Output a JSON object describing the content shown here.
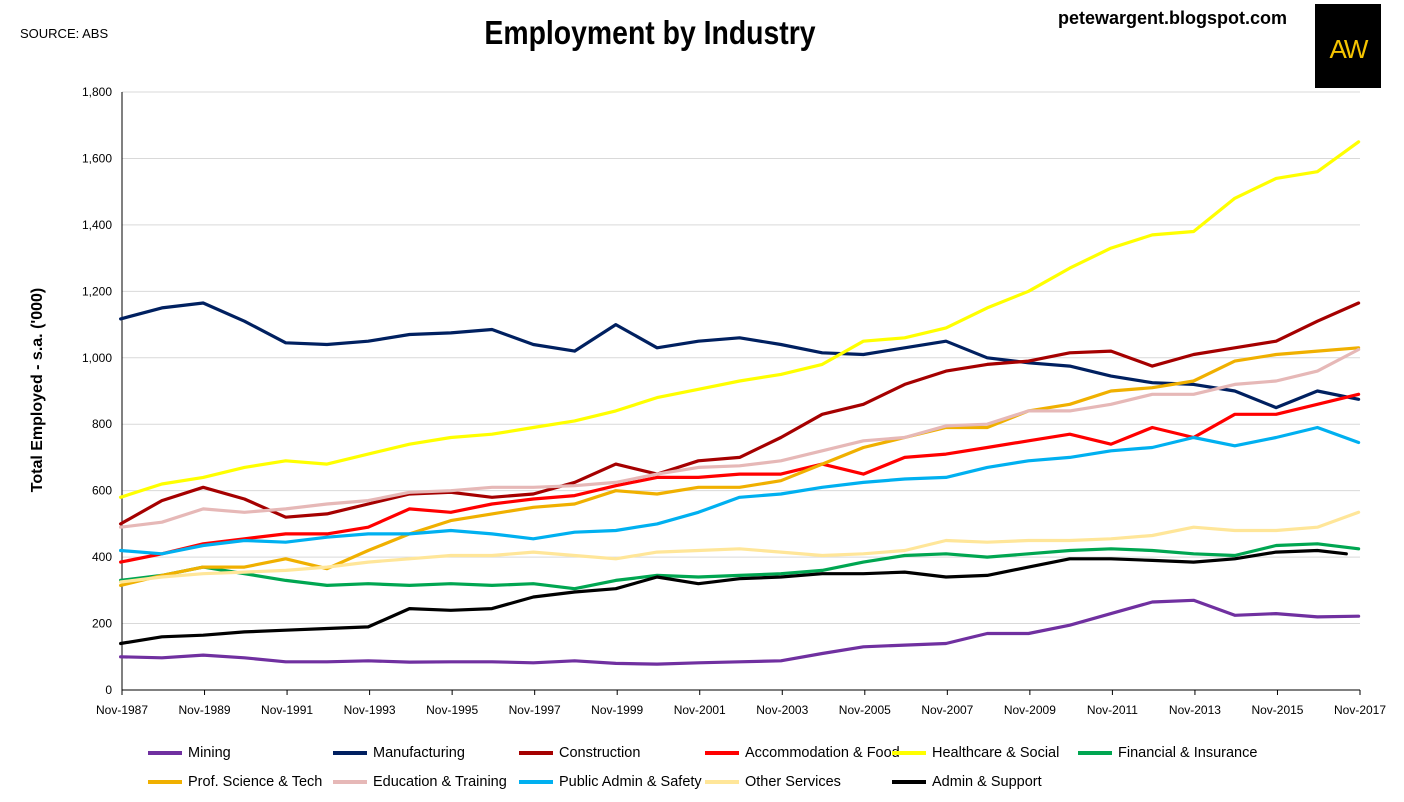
{
  "header": {
    "source": "SOURCE: ABS",
    "blog": "petewargent.blogspot.com",
    "logo_text": "AW"
  },
  "chart_data": {
    "type": "line",
    "title": "Employment by Industry",
    "ylabel": "Total Employed - s.a. ('000)",
    "xlabel": "",
    "ylim": [
      0,
      1800
    ],
    "yticks": [
      0,
      200,
      400,
      600,
      800,
      1000,
      1200,
      1400,
      1600,
      1800
    ],
    "ytick_labels": [
      "0",
      "200",
      "400",
      "600",
      "800",
      "1,000",
      "1,200",
      "1,400",
      "1,600",
      "1,800"
    ],
    "xlim": [
      1987.833,
      2017.833
    ],
    "xtick_labels": [
      "Nov-1987",
      "Nov-1989",
      "Nov-1991",
      "Nov-1993",
      "Nov-1995",
      "Nov-1997",
      "Nov-1999",
      "Nov-2001",
      "Nov-2003",
      "Nov-2005",
      "Nov-2007",
      "Nov-2009",
      "Nov-2011",
      "Nov-2013",
      "Nov-2015",
      "Nov-2017"
    ],
    "xtick_values": [
      1987.833,
      1989.833,
      1991.833,
      1993.833,
      1995.833,
      1997.833,
      1999.833,
      2001.833,
      2003.833,
      2005.833,
      2007.833,
      2009.833,
      2011.833,
      2013.833,
      2015.833,
      2017.833
    ],
    "grid": "horizontal",
    "legend_position": "bottom",
    "series": [
      {
        "name": "Mining",
        "color": "#7030a0",
        "x": [
          1987.8,
          1988.8,
          1989.8,
          1990.8,
          1991.8,
          1992.8,
          1993.8,
          1994.8,
          1995.8,
          1996.8,
          1997.8,
          1998.8,
          1999.8,
          2000.8,
          2001.8,
          2002.8,
          2003.8,
          2004.8,
          2005.8,
          2006.8,
          2007.8,
          2008.8,
          2009.8,
          2010.8,
          2011.8,
          2012.8,
          2013.8,
          2014.8,
          2015.8,
          2016.8,
          2017.8
        ],
        "y": [
          100,
          97,
          105,
          97,
          85,
          85,
          88,
          84,
          85,
          85,
          82,
          88,
          80,
          78,
          82,
          85,
          88,
          110,
          130,
          135,
          140,
          170,
          170,
          195,
          230,
          265,
          270,
          225,
          230,
          220,
          222
        ]
      },
      {
        "name": "Manufacturing",
        "color": "#002060",
        "x": [
          1987.8,
          1988.8,
          1989.8,
          1990.8,
          1991.8,
          1992.8,
          1993.8,
          1994.8,
          1995.8,
          1996.8,
          1997.8,
          1998.8,
          1999.8,
          2000.8,
          2001.8,
          2002.8,
          2003.8,
          2004.8,
          2005.8,
          2006.8,
          2007.8,
          2008.8,
          2009.8,
          2010.8,
          2011.8,
          2012.8,
          2013.8,
          2014.8,
          2015.8,
          2016.8,
          2017.8
        ],
        "y": [
          1117,
          1150,
          1165,
          1110,
          1045,
          1040,
          1050,
          1070,
          1075,
          1085,
          1040,
          1020,
          1100,
          1030,
          1050,
          1060,
          1040,
          1015,
          1010,
          1030,
          1050,
          1000,
          985,
          975,
          945,
          925,
          920,
          900,
          850,
          900,
          875
        ]
      },
      {
        "name": "Construction",
        "color": "#a50000",
        "x": [
          1987.8,
          1988.8,
          1989.8,
          1990.8,
          1991.8,
          1992.8,
          1993.8,
          1994.8,
          1995.8,
          1996.8,
          1997.8,
          1998.8,
          1999.8,
          2000.8,
          2001.8,
          2002.8,
          2003.8,
          2004.8,
          2005.8,
          2006.8,
          2007.8,
          2008.8,
          2009.8,
          2010.8,
          2011.8,
          2012.8,
          2013.8,
          2014.8,
          2015.8,
          2016.8,
          2017.8
        ],
        "y": [
          500,
          570,
          610,
          575,
          520,
          530,
          560,
          590,
          595,
          580,
          590,
          625,
          680,
          650,
          690,
          700,
          760,
          830,
          860,
          920,
          960,
          980,
          990,
          1015,
          1020,
          975,
          1010,
          1030,
          1050,
          1110,
          1165
        ]
      },
      {
        "name": "Accommodation & Food",
        "color": "#ff0000",
        "x": [
          1987.8,
          1988.8,
          1989.8,
          1990.8,
          1991.8,
          1992.8,
          1993.8,
          1994.8,
          1995.8,
          1996.8,
          1997.8,
          1998.8,
          1999.8,
          2000.8,
          2001.8,
          2002.8,
          2003.8,
          2004.8,
          2005.8,
          2006.8,
          2007.8,
          2008.8,
          2009.8,
          2010.8,
          2011.8,
          2012.8,
          2013.8,
          2014.8,
          2015.8,
          2016.8,
          2017.8
        ],
        "y": [
          385,
          410,
          440,
          455,
          470,
          470,
          490,
          545,
          535,
          560,
          575,
          585,
          615,
          640,
          640,
          650,
          650,
          680,
          650,
          700,
          710,
          730,
          750,
          770,
          740,
          790,
          760,
          830,
          830,
          860,
          890
        ]
      },
      {
        "name": "Healthcare & Social",
        "color": "#ffff00",
        "x": [
          1987.8,
          1988.8,
          1989.8,
          1990.8,
          1991.8,
          1992.8,
          1993.8,
          1994.8,
          1995.8,
          1996.8,
          1997.8,
          1998.8,
          1999.8,
          2000.8,
          2001.8,
          2002.8,
          2003.8,
          2004.8,
          2005.8,
          2006.8,
          2007.8,
          2008.8,
          2009.8,
          2010.8,
          2011.8,
          2012.8,
          2013.8,
          2014.8,
          2015.8,
          2016.8,
          2017.8
        ],
        "y": [
          580,
          620,
          640,
          670,
          690,
          680,
          710,
          740,
          760,
          770,
          790,
          810,
          840,
          880,
          905,
          930,
          950,
          980,
          1050,
          1060,
          1090,
          1150,
          1200,
          1270,
          1330,
          1370,
          1380,
          1480,
          1540,
          1560,
          1650
        ]
      },
      {
        "name": "Financial & Insurance",
        "color": "#00a651",
        "x": [
          1987.8,
          1988.8,
          1989.8,
          1990.8,
          1991.8,
          1992.8,
          1993.8,
          1994.8,
          1995.8,
          1996.8,
          1997.8,
          1998.8,
          1999.8,
          2000.8,
          2001.8,
          2002.8,
          2003.8,
          2004.8,
          2005.8,
          2006.8,
          2007.8,
          2008.8,
          2009.8,
          2010.8,
          2011.8,
          2012.8,
          2013.8,
          2014.8,
          2015.8,
          2016.8,
          2017.8
        ],
        "y": [
          330,
          345,
          370,
          350,
          330,
          315,
          320,
          315,
          320,
          315,
          320,
          305,
          330,
          345,
          340,
          345,
          350,
          360,
          385,
          405,
          410,
          400,
          410,
          420,
          425,
          420,
          410,
          405,
          435,
          440,
          425
        ]
      },
      {
        "name": "Prof. Science & Tech",
        "color": "#f0b000",
        "x": [
          1987.8,
          1988.8,
          1989.8,
          1990.8,
          1991.8,
          1992.8,
          1993.8,
          1994.8,
          1995.8,
          1996.8,
          1997.8,
          1998.8,
          1999.8,
          2000.8,
          2001.8,
          2002.8,
          2003.8,
          2004.8,
          2005.8,
          2006.8,
          2007.8,
          2008.8,
          2009.8,
          2010.8,
          2011.8,
          2012.8,
          2013.8,
          2014.8,
          2015.8,
          2016.8,
          2017.8
        ],
        "y": [
          315,
          345,
          370,
          370,
          395,
          365,
          420,
          470,
          510,
          530,
          550,
          560,
          600,
          590,
          610,
          610,
          630,
          680,
          730,
          760,
          790,
          790,
          840,
          860,
          900,
          910,
          930,
          990,
          1010,
          1020,
          1030
        ]
      },
      {
        "name": "Education & Training",
        "color": "#e6b8b7",
        "x": [
          1987.8,
          1988.8,
          1989.8,
          1990.8,
          1991.8,
          1992.8,
          1993.8,
          1994.8,
          1995.8,
          1996.8,
          1997.8,
          1998.8,
          1999.8,
          2000.8,
          2001.8,
          2002.8,
          2003.8,
          2004.8,
          2005.8,
          2006.8,
          2007.8,
          2008.8,
          2009.8,
          2010.8,
          2011.8,
          2012.8,
          2013.8,
          2014.8,
          2015.8,
          2016.8,
          2017.8
        ],
        "y": [
          490,
          505,
          545,
          535,
          545,
          560,
          570,
          595,
          600,
          610,
          610,
          615,
          625,
          650,
          670,
          675,
          690,
          720,
          750,
          760,
          795,
          800,
          840,
          840,
          860,
          890,
          890,
          920,
          930,
          960,
          1025
        ]
      },
      {
        "name": "Public Admin & Safety",
        "color": "#00b0f0",
        "x": [
          1987.8,
          1988.8,
          1989.8,
          1990.8,
          1991.8,
          1992.8,
          1993.8,
          1994.8,
          1995.8,
          1996.8,
          1997.8,
          1998.8,
          1999.8,
          2000.8,
          2001.8,
          2002.8,
          2003.8,
          2004.8,
          2005.8,
          2006.8,
          2007.8,
          2008.8,
          2009.8,
          2010.8,
          2011.8,
          2012.8,
          2013.8,
          2014.8,
          2015.8,
          2016.8,
          2017.8
        ],
        "y": [
          420,
          410,
          435,
          450,
          445,
          460,
          470,
          470,
          480,
          470,
          455,
          475,
          480,
          500,
          535,
          580,
          590,
          610,
          625,
          635,
          640,
          670,
          690,
          700,
          720,
          730,
          760,
          735,
          760,
          790,
          745
        ]
      },
      {
        "name": "Other Services",
        "color": "#ffe699",
        "x": [
          1987.8,
          1988.8,
          1989.8,
          1990.8,
          1991.8,
          1992.8,
          1993.8,
          1994.8,
          1995.8,
          1996.8,
          1997.8,
          1998.8,
          1999.8,
          2000.8,
          2001.8,
          2002.8,
          2003.8,
          2004.8,
          2005.8,
          2006.8,
          2007.8,
          2008.8,
          2009.8,
          2010.8,
          2011.8,
          2012.8,
          2013.8,
          2014.8,
          2015.8,
          2016.8,
          2017.8
        ],
        "y": [
          325,
          340,
          350,
          355,
          360,
          370,
          385,
          395,
          405,
          405,
          415,
          405,
          395,
          415,
          420,
          425,
          415,
          405,
          410,
          420,
          450,
          445,
          450,
          450,
          455,
          465,
          490,
          480,
          480,
          490,
          535
        ]
      },
      {
        "name": "Admin & Support",
        "color": "#000000",
        "x": [
          1987.8,
          1988.8,
          1989.8,
          1990.8,
          1991.8,
          1992.8,
          1993.8,
          1994.8,
          1995.8,
          1996.8,
          1997.8,
          1998.8,
          1999.8,
          2000.8,
          2001.8,
          2002.8,
          2003.8,
          2004.8,
          2005.8,
          2006.8,
          2007.8,
          2008.8,
          2009.8,
          2010.8,
          2011.8,
          2012.8,
          2013.8,
          2014.8,
          2015.8,
          2016.8,
          2017.5
        ],
        "y": [
          140,
          160,
          165,
          175,
          180,
          185,
          190,
          245,
          240,
          245,
          280,
          295,
          305,
          340,
          320,
          335,
          340,
          350,
          350,
          355,
          340,
          345,
          370,
          395,
          395,
          390,
          385,
          395,
          415,
          420,
          410
        ]
      }
    ]
  }
}
